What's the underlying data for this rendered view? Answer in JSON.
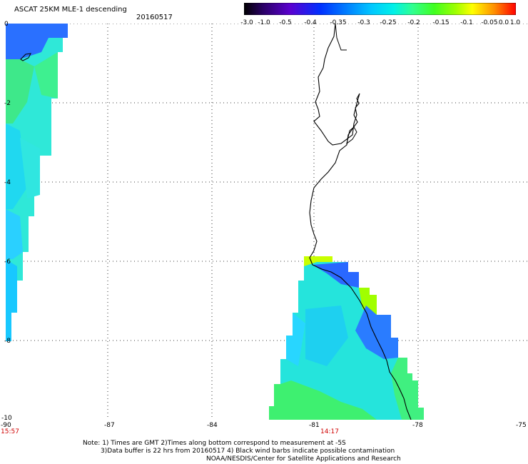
{
  "header": {
    "title": "ASCAT 25KM MLE-1 descending",
    "date": "20160517"
  },
  "colorbar": {
    "labels": [
      "-3.0",
      "-1.0",
      "-0.5",
      "-0.4",
      "-0.35",
      "-0.3",
      "-0.25",
      "-0.2",
      "-0.15",
      "-0.1",
      "-0.05",
      "0.0",
      "1.0"
    ],
    "colors": [
      "#000000",
      "#2a0066",
      "#5a00d0",
      "#0030ff",
      "#0080ff",
      "#00c8ff",
      "#00f0e8",
      "#30ff90",
      "#40ff20",
      "#a0ff00",
      "#ffff00",
      "#ff9000",
      "#ff2000",
      "#ff0000"
    ]
  },
  "map": {
    "y_labels": [
      "0",
      "-2",
      "-4",
      "-6",
      "-8",
      "-10"
    ],
    "x_labels": [
      "-90",
      "-87",
      "-84",
      "-81",
      "-78",
      "-75"
    ],
    "times": {
      "left": "15:57",
      "center": "14:17"
    }
  },
  "notes": {
    "line1": "Note: 1) Times are GMT 2)Times along bottom correspond to measurement at -5S",
    "line2": "3)Data buffer is 22 hrs from 20160517 4) Black wind barbs indicate possible contamination",
    "line3": "NOAA/NESDIS/Center for Satellite Applications and Research"
  }
}
